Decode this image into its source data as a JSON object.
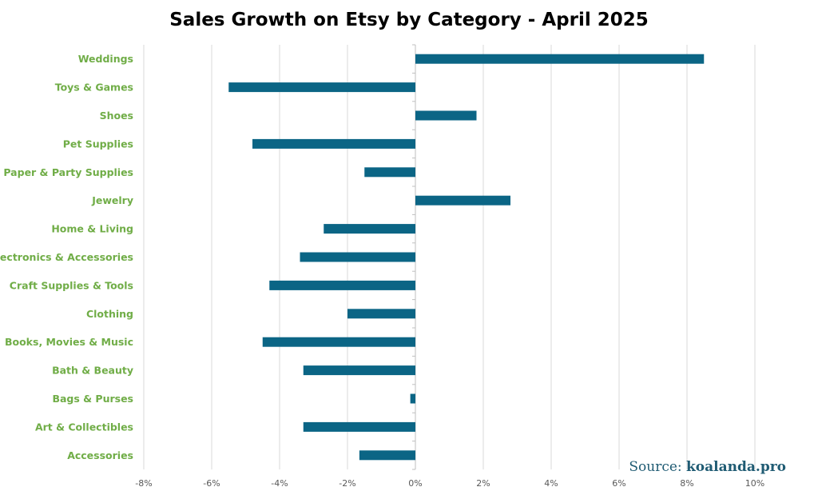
{
  "chart_data": {
    "type": "bar",
    "orientation": "horizontal",
    "title": "Sales Growth on Etsy by Category - April 2025",
    "xlabel": "",
    "ylabel": "",
    "categories": [
      "Weddings",
      "Toys & Games",
      "Shoes",
      "Pet Supplies",
      "Paper & Party Supplies",
      "Jewelry",
      "Home & Living",
      "Electronics & Accessories",
      "Craft Supplies & Tools",
      "Clothing",
      "Books, Movies & Music",
      "Bath & Beauty",
      "Bags & Purses",
      "Art & Collectibles",
      "Accessories"
    ],
    "values": [
      8.5,
      -5.5,
      1.8,
      -4.8,
      -1.5,
      2.8,
      -2.7,
      -3.4,
      -4.3,
      -2.0,
      -4.5,
      -3.3,
      -0.15,
      -3.3,
      -1.65
    ],
    "xlim": [
      -8,
      10
    ],
    "xticks": [
      -8,
      -6,
      -4,
      -2,
      0,
      2,
      4,
      6,
      8,
      10
    ],
    "xtick_labels": [
      "-8%",
      "-6%",
      "-4%",
      "-2%",
      "0%",
      "2%",
      "4%",
      "6%",
      "8%",
      "10%"
    ],
    "grid": true,
    "legend": "none"
  },
  "colors": {
    "bar": "#0b6585",
    "category_label": "#70ad47",
    "gridline": "#d9d9d9",
    "source": "#1f5b73"
  },
  "source": {
    "prefix": "Source:",
    "name": "koalanda.pro"
  }
}
